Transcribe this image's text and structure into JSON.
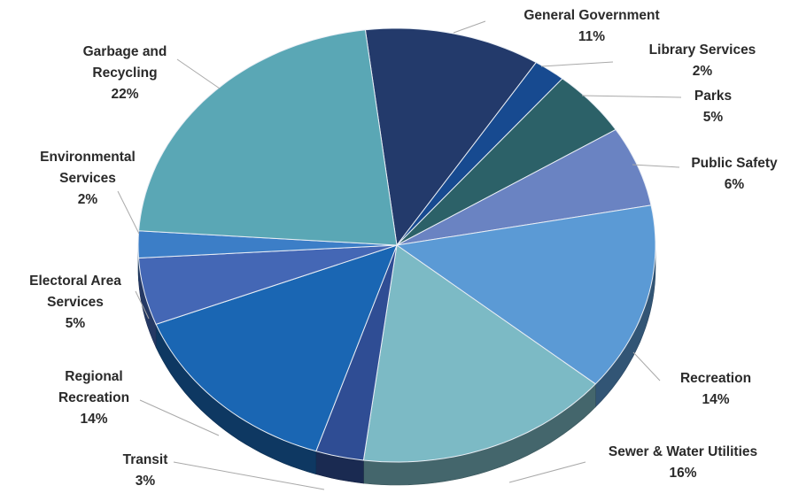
{
  "chart_data": {
    "type": "pie",
    "title": "",
    "slices": [
      {
        "label": [
          "General Government"
        ],
        "value": 11,
        "display": "11%",
        "color": "#233A6B"
      },
      {
        "label": [
          "Library Services"
        ],
        "value": 2,
        "display": "2%",
        "color": "#174A90"
      },
      {
        "label": [
          "Parks"
        ],
        "value": 5,
        "display": "5%",
        "color": "#2C6168"
      },
      {
        "label": [
          "Public Safety"
        ],
        "value": 6,
        "display": "6%",
        "color": "#6A83C2"
      },
      {
        "label": [
          "Recreation"
        ],
        "value": 14,
        "display": "14%",
        "color": "#5B9AD5"
      },
      {
        "label": [
          "Sewer & Water Utilities"
        ],
        "value": 16,
        "display": "16%",
        "color": "#7CBAC5"
      },
      {
        "label": [
          "Transit"
        ],
        "value": 3,
        "display": "3%",
        "color": "#2F4D94"
      },
      {
        "label": [
          "Regional",
          "Recreation"
        ],
        "value": 14,
        "display": "14%",
        "color": "#1A66B3"
      },
      {
        "label": [
          "Electoral Area",
          "Services"
        ],
        "value": 5,
        "display": "5%",
        "color": "#4467B5"
      },
      {
        "label": [
          "Environmental",
          "Services"
        ],
        "value": 2,
        "display": "2%",
        "color": "#3C7EC7"
      },
      {
        "label": [
          "Garbage and",
          "Recycling"
        ],
        "value": 22,
        "display": "22%",
        "color": "#5AA7B5"
      }
    ],
    "legend": "none",
    "style": "3d-pie-with-leader-lines"
  }
}
